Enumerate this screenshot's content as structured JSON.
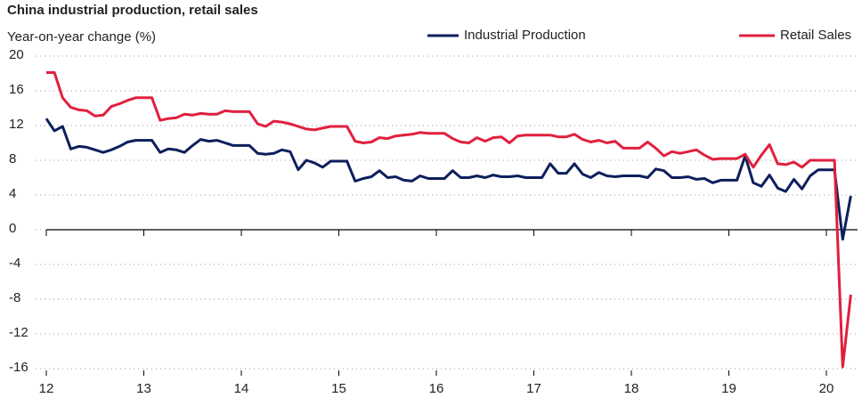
{
  "chart_data": {
    "type": "line",
    "title": "China industrial production, retail sales",
    "subtitle": "Year-on-year change (%)",
    "categories": [
      "12",
      null,
      null,
      null,
      null,
      null,
      null,
      null,
      null,
      null,
      null,
      null,
      "13",
      null,
      null,
      null,
      null,
      null,
      null,
      null,
      null,
      null,
      null,
      null,
      "14",
      null,
      null,
      null,
      null,
      null,
      null,
      null,
      null,
      null,
      null,
      null,
      "15",
      null,
      null,
      null,
      null,
      null,
      null,
      null,
      null,
      null,
      null,
      null,
      "16",
      null,
      null,
      null,
      null,
      null,
      null,
      null,
      null,
      null,
      null,
      null,
      "17",
      null,
      null,
      null,
      null,
      null,
      null,
      null,
      null,
      null,
      null,
      null,
      "18",
      null,
      null,
      null,
      null,
      null,
      null,
      null,
      null,
      null,
      null,
      null,
      "19",
      null,
      null,
      null,
      null,
      null,
      null,
      null,
      null,
      null,
      null,
      null,
      "20",
      null,
      null,
      null
    ],
    "series": [
      {
        "name": "Industrial Production",
        "color": "#0d1f5c",
        "values": [
          12.8,
          11.4,
          11.9,
          9.3,
          9.6,
          9.5,
          9.2,
          8.9,
          9.2,
          9.6,
          10.1,
          10.3,
          10.3,
          10.3,
          8.9,
          9.3,
          9.2,
          8.9,
          9.7,
          10.4,
          10.2,
          10.3,
          10.0,
          9.7,
          9.7,
          9.7,
          8.8,
          8.7,
          8.8,
          9.2,
          9.0,
          6.9,
          8.0,
          7.7,
          7.2,
          7.9,
          7.9,
          7.9,
          5.6,
          5.9,
          6.1,
          6.8,
          6.0,
          6.1,
          5.7,
          5.6,
          6.2,
          5.9,
          5.9,
          5.9,
          6.8,
          6.0,
          6.0,
          6.2,
          6.0,
          6.3,
          6.1,
          6.1,
          6.2,
          6.0,
          6.0,
          6.0,
          7.6,
          6.5,
          6.5,
          7.6,
          6.4,
          6.0,
          6.6,
          6.2,
          6.1,
          6.2,
          6.2,
          6.2,
          6.0,
          7.0,
          6.8,
          6.0,
          6.0,
          6.1,
          5.8,
          5.9,
          5.4,
          5.7,
          5.7,
          5.7,
          8.5,
          5.4,
          5.0,
          6.3,
          4.8,
          4.4,
          5.8,
          4.7,
          6.2,
          6.9,
          6.9,
          6.9,
          -1.1,
          3.9
        ]
      },
      {
        "name": "Retail Sales",
        "color": "#e0203e",
        "values": [
          18.1,
          18.1,
          15.2,
          14.1,
          13.8,
          13.7,
          13.1,
          13.2,
          14.2,
          14.5,
          14.9,
          15.2,
          15.2,
          15.2,
          12.6,
          12.8,
          12.9,
          13.3,
          13.2,
          13.4,
          13.3,
          13.3,
          13.7,
          13.6,
          13.6,
          13.6,
          12.2,
          11.9,
          12.5,
          12.4,
          12.2,
          11.9,
          11.6,
          11.5,
          11.7,
          11.9,
          11.9,
          11.9,
          10.2,
          10.0,
          10.1,
          10.6,
          10.5,
          10.8,
          10.9,
          11.0,
          11.2,
          11.1,
          11.1,
          11.1,
          10.5,
          10.1,
          10.0,
          10.6,
          10.2,
          10.6,
          10.7,
          10.0,
          10.8,
          10.9,
          10.9,
          10.9,
          10.9,
          10.7,
          10.7,
          11.0,
          10.4,
          10.1,
          10.3,
          10.0,
          10.2,
          9.4,
          9.4,
          9.4,
          10.1,
          9.4,
          8.5,
          9.0,
          8.8,
          9.0,
          9.2,
          8.6,
          8.1,
          8.2,
          8.2,
          8.2,
          8.7,
          7.2,
          8.6,
          9.8,
          7.6,
          7.5,
          7.8,
          7.2,
          8.0,
          8.0,
          8.0,
          8.0,
          -15.8,
          -7.5
        ]
      }
    ],
    "ylim": [
      -16,
      20
    ],
    "yticks": [
      -16,
      -12,
      -8,
      -4,
      0,
      4,
      8,
      12,
      16,
      20
    ],
    "grid": true
  }
}
